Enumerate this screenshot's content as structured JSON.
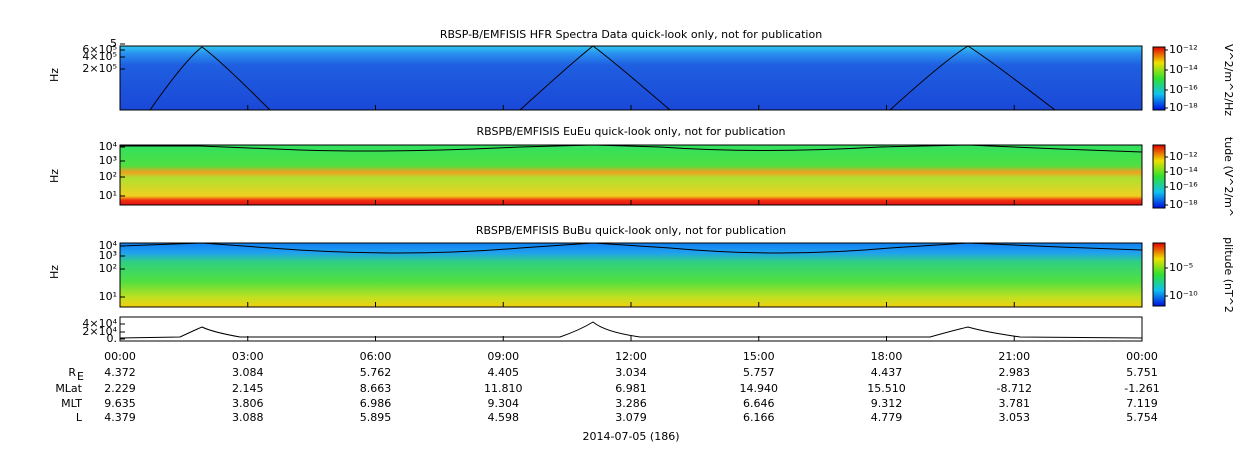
{
  "panels": [
    {
      "title": "RBSP-B/EMFISIS  HFR Spectra Data quick-look only, not for publication",
      "ylabel": "Hz",
      "yticks": [
        "5",
        "6×10⁵",
        "4×10⁵",
        "2×10⁵"
      ],
      "cbar_label": "V^2/m^2/Hz",
      "cbar_ticks": [
        "10⁻¹²",
        "10⁻¹⁴",
        "10⁻¹⁶",
        "10⁻¹⁸"
      ]
    },
    {
      "title": "RBSPB/EMFISIS  EuEu quick-look only, not for publication",
      "ylabel": "Hz",
      "yticks": [
        "10⁴",
        "10³",
        "10²",
        "10¹"
      ],
      "cbar_label": "tude (V^2/m^",
      "cbar_ticks": [
        "10⁻¹²",
        "10⁻¹⁴",
        "10⁻¹⁶",
        "10⁻¹⁸"
      ]
    },
    {
      "title": "RBSPB/EMFISIS  BuBu quick-look only, not for publication",
      "ylabel": "Hz",
      "yticks": [
        "10⁴",
        "10³",
        "10²",
        "10¹"
      ],
      "cbar_label": "plitude (nT^2",
      "cbar_ticks": [
        "10⁻⁵",
        "10⁻¹⁰"
      ]
    },
    {
      "yticks": [
        "4×10⁴",
        "2×10⁴",
        "0."
      ]
    }
  ],
  "xticks": [
    "00:00",
    "03:00",
    "06:00",
    "09:00",
    "12:00",
    "15:00",
    "18:00",
    "21:00",
    "00:00"
  ],
  "ephemeris": [
    {
      "label": "R",
      "sub": "E",
      "values": [
        "4.372",
        "3.084",
        "5.762",
        "4.405",
        "3.034",
        "5.757",
        "4.437",
        "2.983",
        "5.751"
      ]
    },
    {
      "label": "MLat",
      "values": [
        "2.229",
        "2.145",
        "8.663",
        "11.810",
        "6.981",
        "14.940",
        "15.510",
        "-8.712",
        "-1.261"
      ]
    },
    {
      "label": "MLT",
      "values": [
        "9.635",
        "3.806",
        "6.986",
        "9.304",
        "3.286",
        "6.646",
        "9.312",
        "3.781",
        "7.119"
      ]
    },
    {
      "label": "L",
      "values": [
        "4.379",
        "3.088",
        "5.895",
        "4.598",
        "3.079",
        "6.166",
        "4.779",
        "3.053",
        "5.754"
      ]
    }
  ],
  "date": "2014-07-05 (186)"
}
